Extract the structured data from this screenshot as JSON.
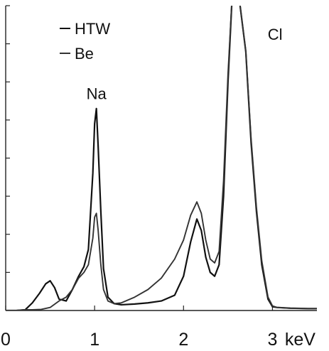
{
  "chart_data": {
    "type": "line",
    "xlabel": "",
    "ylabel": "",
    "xlim": [
      0,
      3.5
    ],
    "ylim": [
      0,
      8
    ],
    "y_tick_count": 8,
    "x_tick_values": [
      0,
      1,
      2,
      3
    ],
    "x_tick_labels": [
      "0",
      "1",
      "2",
      "3"
    ],
    "x_unit_label": "keV",
    "legend": {
      "placement": "top-left",
      "entries": [
        "HTW",
        "Be"
      ]
    },
    "annotations": [
      {
        "text": "Na",
        "x": 1.02,
        "y": 5.7
      },
      {
        "text": "Cl",
        "x": 3.03,
        "y": 7.25
      }
    ],
    "series": [
      {
        "name": "HTW",
        "x": [
          0.0,
          0.12,
          0.22,
          0.3,
          0.38,
          0.45,
          0.5,
          0.55,
          0.6,
          0.68,
          0.75,
          0.82,
          0.88,
          0.93,
          0.98,
          1.0,
          1.02,
          1.04,
          1.07,
          1.1,
          1.15,
          1.22,
          1.3,
          1.45,
          1.6,
          1.75,
          1.9,
          2.0,
          2.08,
          2.15,
          2.2,
          2.25,
          2.3,
          2.35,
          2.4,
          2.45,
          2.5,
          2.55,
          2.62,
          2.7,
          2.76,
          2.82,
          2.88,
          2.95,
          3.0,
          3.05,
          3.2,
          3.4,
          3.5
        ],
        "y": [
          0.0,
          0.0,
          0.02,
          0.2,
          0.45,
          0.7,
          0.78,
          0.6,
          0.3,
          0.25,
          0.55,
          0.9,
          1.15,
          1.6,
          3.6,
          4.9,
          5.3,
          4.3,
          2.6,
          1.1,
          0.35,
          0.18,
          0.15,
          0.17,
          0.2,
          0.25,
          0.4,
          0.9,
          1.8,
          2.4,
          2.1,
          1.4,
          1.0,
          0.9,
          1.2,
          3.0,
          6.0,
          8.4,
          8.3,
          6.8,
          4.4,
          2.6,
          1.2,
          0.3,
          0.1,
          0.08,
          0.06,
          0.05,
          0.05
        ]
      },
      {
        "name": "Be",
        "x": [
          0.0,
          0.12,
          0.22,
          0.3,
          0.4,
          0.5,
          0.6,
          0.68,
          0.75,
          0.82,
          0.88,
          0.93,
          0.98,
          1.0,
          1.02,
          1.04,
          1.07,
          1.1,
          1.15,
          1.22,
          1.3,
          1.45,
          1.6,
          1.75,
          1.9,
          2.0,
          2.08,
          2.15,
          2.2,
          2.25,
          2.3,
          2.35,
          2.4,
          2.45,
          2.5,
          2.55,
          2.62,
          2.7,
          2.76,
          2.82,
          2.88,
          2.95,
          3.0,
          3.05,
          3.2,
          3.4,
          3.5
        ],
        "y": [
          0.0,
          0.0,
          0.02,
          0.02,
          0.03,
          0.08,
          0.25,
          0.35,
          0.55,
          0.85,
          1.0,
          1.2,
          1.9,
          2.45,
          2.55,
          2.1,
          1.2,
          0.55,
          0.25,
          0.18,
          0.2,
          0.35,
          0.55,
          0.85,
          1.35,
          1.85,
          2.5,
          2.85,
          2.55,
          1.85,
          1.35,
          1.25,
          1.55,
          3.4,
          6.2,
          8.4,
          8.3,
          6.8,
          4.5,
          2.7,
          1.3,
          0.35,
          0.12,
          0.08,
          0.06,
          0.05,
          0.05
        ]
      }
    ]
  }
}
